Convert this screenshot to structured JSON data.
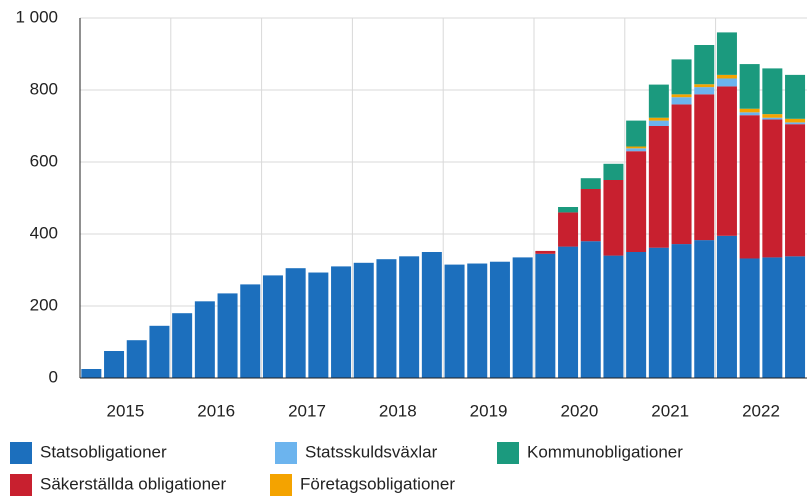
{
  "chart_data": {
    "type": "stacked_bar",
    "categories": [
      null,
      null,
      null,
      null,
      null,
      null,
      null,
      null,
      null,
      null,
      null,
      null,
      null,
      null,
      null,
      null,
      null,
      null,
      null,
      null,
      null,
      null,
      null,
      null,
      null,
      null,
      null,
      null,
      null,
      null,
      null,
      null
    ],
    "xticks": [
      2015,
      2016,
      2017,
      2018,
      2019,
      2020,
      2021,
      2022
    ],
    "series": [
      {
        "name": "Statsobligationer",
        "color": "#1c6fbd",
        "values": [
          25,
          75,
          105,
          145,
          180,
          213,
          235,
          260,
          285,
          305,
          293,
          310,
          320,
          330,
          338,
          350,
          315,
          318,
          323,
          335,
          345,
          365,
          380,
          340,
          350,
          362,
          372,
          383,
          395,
          332,
          335,
          338
        ]
      },
      {
        "name": "Säkerställda obligationer",
        "color": "#c8202f",
        "values": [
          0,
          0,
          0,
          0,
          0,
          0,
          0,
          0,
          0,
          0,
          0,
          0,
          0,
          0,
          0,
          0,
          0,
          0,
          0,
          0,
          8,
          95,
          145,
          210,
          280,
          338,
          388,
          405,
          415,
          398,
          383,
          367
        ]
      },
      {
        "name": "Statsskuldsväxlar",
        "color": "#6cb4ee",
        "values": [
          0,
          0,
          0,
          0,
          0,
          0,
          0,
          0,
          0,
          0,
          0,
          0,
          0,
          0,
          0,
          0,
          0,
          0,
          0,
          0,
          0,
          0,
          0,
          0,
          8,
          15,
          20,
          20,
          22,
          8,
          5,
          5
        ]
      },
      {
        "name": "Företagsobligationer",
        "color": "#f4a300",
        "values": [
          0,
          0,
          0,
          0,
          0,
          0,
          0,
          0,
          0,
          0,
          0,
          0,
          0,
          0,
          0,
          0,
          0,
          0,
          0,
          0,
          0,
          0,
          0,
          0,
          5,
          8,
          8,
          8,
          10,
          10,
          10,
          10
        ]
      },
      {
        "name": "Kommunobligationer",
        "color": "#1b9a7e",
        "values": [
          0,
          0,
          0,
          0,
          0,
          0,
          0,
          0,
          0,
          0,
          0,
          0,
          0,
          0,
          0,
          0,
          0,
          0,
          0,
          0,
          0,
          15,
          30,
          45,
          72,
          92,
          97,
          109,
          118,
          124,
          127,
          122
        ]
      }
    ],
    "ylim": [
      0,
      1000
    ],
    "yticks": [
      0,
      200,
      400,
      600,
      800,
      {
        "value": 1000,
        "label": "1 000"
      }
    ],
    "grid": true
  }
}
